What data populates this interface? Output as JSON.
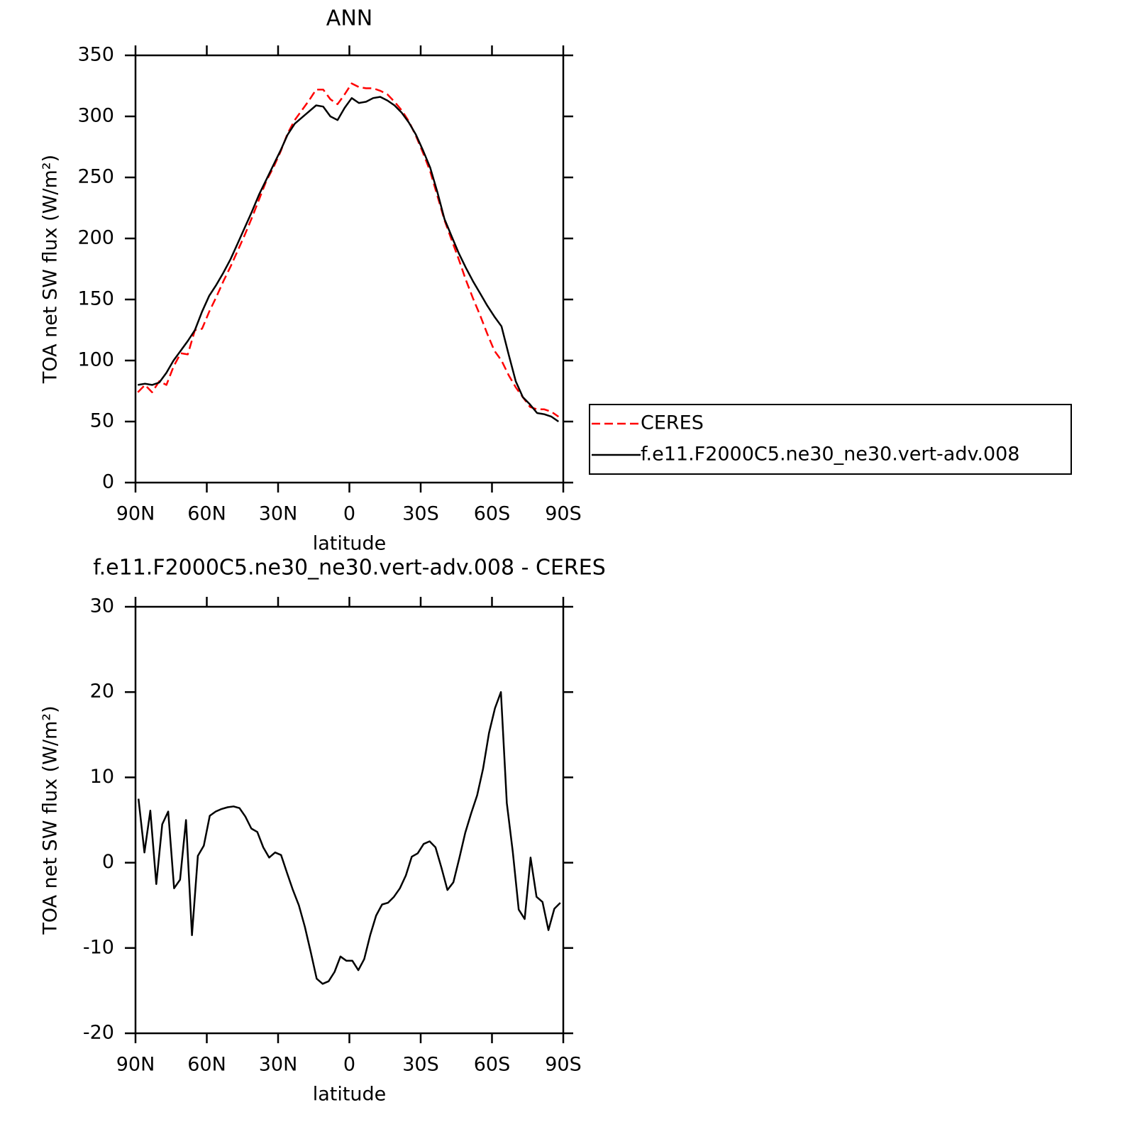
{
  "chart_data": [
    {
      "type": "line",
      "title": "ANN",
      "xlabel": "latitude",
      "ylabel": "TOA net SW flux (W/m²)",
      "x": [
        89,
        86,
        83,
        80,
        77,
        74,
        71,
        68,
        65,
        62,
        59,
        56,
        53,
        50,
        47,
        44,
        41,
        38,
        35,
        32,
        29,
        26,
        23,
        20,
        17,
        14,
        11,
        8,
        5,
        2,
        -1,
        -4,
        -7,
        -10,
        -13,
        -16,
        -19,
        -22,
        -25,
        -28,
        -31,
        -34,
        -37,
        -40,
        -43,
        -46,
        -49,
        -52,
        -55,
        -58,
        -61,
        -64,
        -67,
        -70,
        -73,
        -76,
        -79,
        -82,
        -85,
        -88
      ],
      "series": [
        {
          "name": "CERES",
          "color": "#ff0000",
          "style": "dashed",
          "values": [
            74,
            80,
            74,
            83,
            80,
            95,
            106,
            105,
            125,
            126,
            140,
            152,
            165,
            177,
            190,
            203,
            217,
            232,
            247,
            258,
            271,
            286,
            297,
            305,
            313,
            322,
            322,
            314,
            310,
            318,
            327,
            324,
            323,
            323,
            321,
            318,
            312,
            305,
            296,
            284,
            270,
            255,
            235,
            215,
            199,
            183,
            166,
            151,
            137,
            122,
            108,
            100,
            88,
            78,
            70,
            62,
            60,
            60,
            58,
            54
          ]
        },
        {
          "name": "f.e11.F2000C5.ne30_ne30.vert-adv.008",
          "color": "#000000",
          "style": "solid",
          "values": [
            80,
            81,
            80,
            82,
            90,
            100,
            108,
            116,
            125,
            140,
            153,
            162,
            172,
            183,
            196,
            209,
            222,
            236,
            248,
            260,
            272,
            285,
            294,
            299,
            304,
            309,
            308,
            300,
            297,
            307,
            315,
            311,
            312,
            315,
            316,
            313,
            309,
            303,
            295,
            285,
            272,
            258,
            238,
            216,
            202,
            188,
            176,
            165,
            155,
            145,
            136,
            128,
            105,
            83,
            70,
            64,
            57,
            56,
            54,
            50
          ]
        }
      ],
      "xlim": [
        90,
        -90
      ],
      "xticks": [
        {
          "value": 90,
          "label": "90N"
        },
        {
          "value": 60,
          "label": "60N"
        },
        {
          "value": 30,
          "label": "30N"
        },
        0,
        {
          "value": -30,
          "label": "30S"
        },
        {
          "value": -60,
          "label": "60S"
        },
        {
          "value": -90,
          "label": "90S"
        }
      ],
      "ylim": [
        0,
        350
      ],
      "yticks": [
        0,
        50,
        100,
        150,
        200,
        250,
        300,
        350
      ],
      "legend_position": "right"
    },
    {
      "type": "line",
      "title": "f.e11.F2000C5.ne30_ne30.vert-adv.008 - CERES",
      "xlabel": "latitude",
      "ylabel": "TOA net SW flux (W/m²)",
      "x": [
        88.75,
        86.25,
        83.75,
        81.25,
        78.75,
        76.25,
        73.75,
        71.25,
        68.75,
        66.25,
        63.75,
        61.25,
        58.75,
        56.25,
        53.75,
        51.25,
        48.75,
        46.25,
        43.75,
        41.25,
        38.75,
        36.25,
        33.75,
        31.25,
        28.75,
        26.25,
        23.75,
        21.25,
        18.75,
        16.25,
        13.75,
        11.25,
        8.75,
        6.25,
        3.75,
        1.25,
        -1.25,
        -3.75,
        -6.25,
        -8.75,
        -11.25,
        -13.75,
        -16.25,
        -18.75,
        -21.25,
        -23.75,
        -26.25,
        -28.75,
        -31.25,
        -33.75,
        -36.25,
        -38.75,
        -41.25,
        -43.75,
        -46.25,
        -48.75,
        -51.25,
        -53.75,
        -56.25,
        -58.75,
        -61.25,
        -63.75,
        -66.25,
        -68.75,
        -71.25,
        -73.75,
        -76.25,
        -78.75,
        -81.25,
        -83.75,
        -86.25,
        -88.75
      ],
      "series": [
        {
          "name": "f.e11.F2000C5.ne30_ne30.vert-adv.008 - CERES",
          "color": "#000000",
          "style": "solid",
          "values": [
            7.5,
            1.2,
            6.1,
            -2.5,
            4.5,
            6.0,
            -3.0,
            -2.0,
            5.0,
            -8.5,
            0.8,
            2.0,
            5.5,
            6.0,
            6.3,
            6.5,
            6.6,
            6.4,
            5.4,
            4.0,
            3.6,
            1.8,
            0.6,
            1.2,
            0.9,
            -1.2,
            -3.2,
            -5.0,
            -7.5,
            -10.5,
            -13.6,
            -14.2,
            -13.9,
            -12.8,
            -11.0,
            -11.5,
            -11.5,
            -12.6,
            -11.3,
            -8.5,
            -6.2,
            -4.9,
            -4.7,
            -4.0,
            -3.0,
            -1.5,
            0.7,
            1.1,
            2.2,
            2.5,
            1.8,
            -0.6,
            -3.2,
            -2.3,
            0.5,
            3.5,
            5.8,
            7.9,
            11.0,
            15.2,
            18.1,
            20.0,
            7.0,
            1.3,
            -5.5,
            -6.6,
            0.6,
            -4.0,
            -4.6,
            -7.9,
            -5.4,
            -4.7
          ]
        }
      ],
      "xlim": [
        90,
        -90
      ],
      "xticks": [
        {
          "value": 90,
          "label": "90N"
        },
        {
          "value": 60,
          "label": "60N"
        },
        {
          "value": 30,
          "label": "30N"
        },
        0,
        {
          "value": -30,
          "label": "30S"
        },
        {
          "value": -60,
          "label": "60S"
        },
        {
          "value": -90,
          "label": "90S"
        }
      ],
      "ylim": [
        -20,
        30
      ],
      "yticks": [
        -20,
        -10,
        0,
        10,
        20,
        30
      ]
    }
  ]
}
